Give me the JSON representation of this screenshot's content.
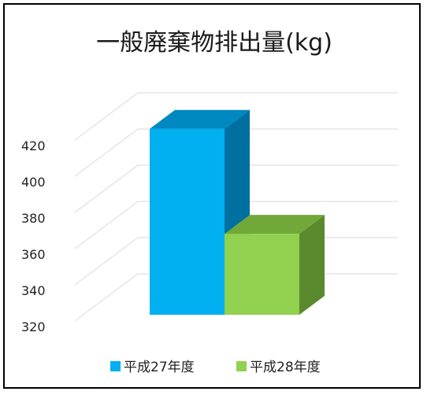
{
  "chart_data": {
    "type": "bar",
    "title": "一般廃棄物排出量(kg)",
    "xlabel": "",
    "ylabel": "",
    "categories": [
      ""
    ],
    "series": [
      {
        "name": "平成27年度",
        "values": [
          421
        ],
        "color": "#00b0f0",
        "side_color": "#0070a0",
        "top_color": "#0088c0"
      },
      {
        "name": "平成28年度",
        "values": [
          363
        ],
        "color": "#92d050",
        "side_color": "#5b8a2e",
        "top_color": "#70a83a"
      }
    ],
    "ylim": [
      320,
      420
    ],
    "yticks": [
      320,
      340,
      360,
      380,
      400,
      420
    ],
    "grid": true,
    "legend": "bottom",
    "render": "3d-column"
  }
}
